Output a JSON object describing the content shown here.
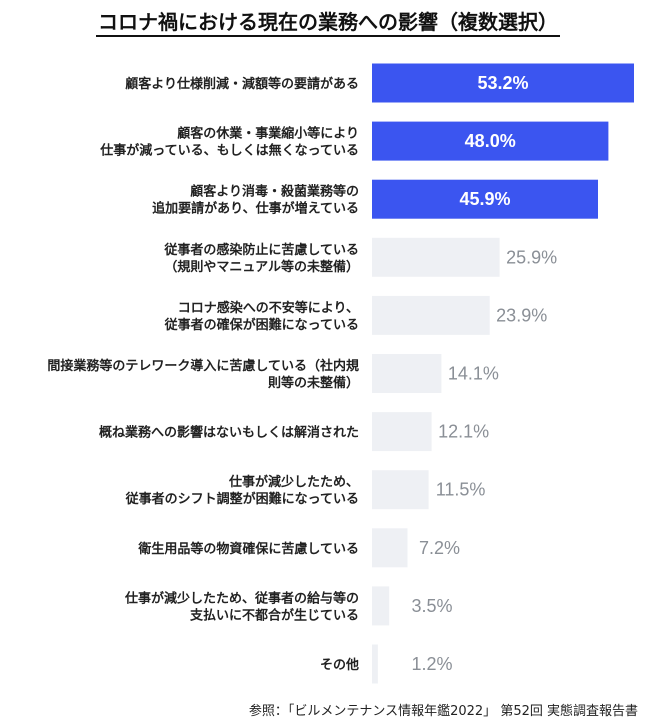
{
  "chart_data": {
    "type": "bar",
    "orientation": "horizontal",
    "title": "コロナ禍における現在の業務への影響（複数選択）",
    "categories": [
      "顧客より仕様削減・減額等の要請がある",
      "顧客の休業・事業縮小等により\n仕事が減っている、もしくは無くなっている",
      "顧客より消毒・殺菌業務等の\n追加要請があり、仕事が増えている",
      "従事者の感染防止に苦慮している\n（規則やマニュアル等の未整備）",
      "コロナ感染への不安等により、\n従事者の確保が困難になっている",
      "間接業務等のテレワーク導入に苦慮している（社内規\n則等の未整備）",
      "概ね業務への影響はないもしくは解消された",
      "仕事が減少したため、\n従事者のシフト調整が困難になっている",
      "衛生用品等の物資確保に苦慮している",
      "仕事が減少したため、従事者の給与等の\n支払いに不都合が生じている",
      "その他"
    ],
    "values": [
      53.2,
      48.0,
      45.9,
      25.9,
      23.9,
      14.1,
      12.1,
      11.5,
      7.2,
      3.5,
      1.2
    ],
    "value_labels": [
      "53.2%",
      "48.0%",
      "45.9%",
      "25.9%",
      "23.9%",
      "14.1%",
      "12.1%",
      "11.5%",
      "7.2%",
      "3.5%",
      "1.2%"
    ],
    "highlight_count": 3,
    "colors": {
      "highlight": "#3b55f0",
      "normal": "#eef0f4",
      "label_muted": "#8a8f96"
    },
    "xlim": [
      0,
      53.2
    ],
    "grid": false,
    "legend": "none"
  },
  "source_note": "参照：「ビルメンテナンス情報年鑑2022」 第52回 実態調査報告書"
}
